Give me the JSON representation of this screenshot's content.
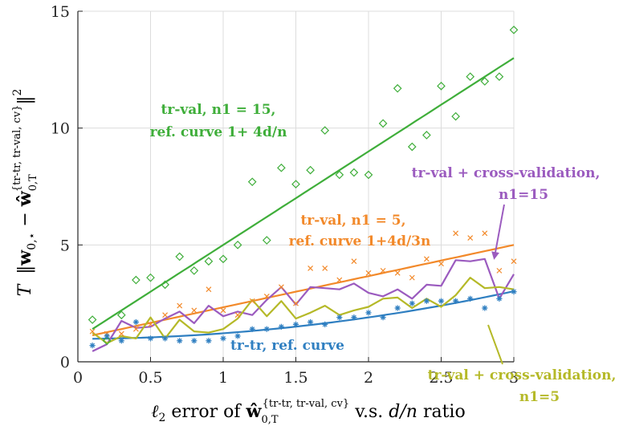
{
  "chart_data": {
    "type": "scatter",
    "xlabel": "ℓ2 error of ŵ0,T{tr-tr, tr-val, cv} v.s. d/n ratio",
    "ylabel": "T ‖w0,⋆ − ŵ0,T{tr-tr, tr-val, cv}‖²",
    "xlim": [
      0,
      3
    ],
    "ylim": [
      0,
      15
    ],
    "xticks": [
      0,
      0.5,
      1,
      1.5,
      2,
      2.5,
      3
    ],
    "xtick_labels": [
      "0",
      "0.5",
      "1",
      "1.5",
      "2",
      "2.5",
      "3"
    ],
    "yticks": [
      0,
      5,
      10,
      15
    ],
    "ytick_labels": [
      "0",
      "5",
      "10",
      "15"
    ],
    "grid": true,
    "series": [
      {
        "key": "trval15",
        "color": "#3fae3a",
        "marker": "diamond",
        "x": [
          0.1,
          0.2,
          0.3,
          0.4,
          0.5,
          0.6,
          0.7,
          0.8,
          0.9,
          1.0,
          1.1,
          1.2,
          1.3,
          1.4,
          1.5,
          1.6,
          1.7,
          1.8,
          1.9,
          2.0,
          2.1,
          2.2,
          2.3,
          2.4,
          2.5,
          2.6,
          2.7,
          2.8,
          2.9,
          3.0
        ],
        "y": [
          1.8,
          0.9,
          2.0,
          3.5,
          3.6,
          3.3,
          4.5,
          3.9,
          4.3,
          4.4,
          5.0,
          7.7,
          5.2,
          8.3,
          7.6,
          8.2,
          9.9,
          8.0,
          8.1,
          8.0,
          10.2,
          11.7,
          9.2,
          9.7,
          11.8,
          10.5,
          12.2,
          12.0,
          12.2,
          14.2
        ]
      },
      {
        "key": "trval5",
        "color": "#f2892a",
        "marker": "x",
        "x": [
          0.1,
          0.2,
          0.3,
          0.4,
          0.5,
          0.6,
          0.7,
          0.8,
          0.9,
          1.0,
          1.1,
          1.2,
          1.3,
          1.4,
          1.5,
          1.6,
          1.7,
          1.8,
          1.9,
          2.0,
          2.1,
          2.2,
          2.3,
          2.4,
          2.5,
          2.6,
          2.7,
          2.8,
          2.9,
          3.0
        ],
        "y": [
          1.3,
          1.2,
          1.2,
          1.4,
          1.6,
          2.0,
          2.4,
          2.2,
          3.1,
          2.2,
          2.0,
          2.6,
          2.8,
          3.2,
          2.5,
          4.0,
          4.0,
          3.5,
          4.3,
          3.8,
          3.9,
          3.8,
          3.6,
          4.4,
          4.2,
          5.5,
          5.3,
          5.5,
          3.9,
          4.3
        ]
      },
      {
        "key": "trtr",
        "color": "#2f7fc1",
        "marker": "asterisk",
        "x": [
          0.1,
          0.2,
          0.3,
          0.4,
          0.5,
          0.6,
          0.7,
          0.8,
          0.9,
          1.0,
          1.1,
          1.2,
          1.3,
          1.4,
          1.5,
          1.6,
          1.7,
          1.8,
          1.9,
          2.0,
          2.1,
          2.2,
          2.3,
          2.4,
          2.5,
          2.6,
          2.7,
          2.8,
          2.9,
          3.0
        ],
        "y": [
          0.7,
          1.1,
          0.9,
          1.7,
          1.0,
          1.0,
          0.9,
          0.9,
          0.9,
          1.0,
          1.1,
          1.4,
          1.4,
          1.5,
          1.6,
          1.7,
          1.6,
          1.9,
          1.9,
          2.1,
          1.9,
          2.3,
          2.5,
          2.6,
          2.6,
          2.6,
          2.7,
          2.3,
          2.7,
          3.0
        ]
      }
    ],
    "line_series": [
      {
        "key": "cv15",
        "color": "#9b5bbf",
        "x": [
          0.1,
          0.2,
          0.3,
          0.4,
          0.5,
          0.6,
          0.7,
          0.8,
          0.9,
          1.0,
          1.1,
          1.2,
          1.3,
          1.4,
          1.5,
          1.6,
          1.7,
          1.8,
          1.9,
          2.0,
          2.1,
          2.2,
          2.3,
          2.4,
          2.5,
          2.6,
          2.7,
          2.8,
          2.9,
          3.0
        ],
        "y": [
          0.45,
          0.75,
          1.75,
          1.45,
          1.5,
          1.85,
          2.15,
          1.65,
          2.4,
          1.95,
          2.15,
          2.0,
          2.65,
          3.2,
          2.45,
          3.2,
          3.15,
          3.1,
          3.35,
          2.95,
          2.8,
          3.1,
          2.7,
          3.3,
          3.25,
          4.35,
          4.3,
          4.4,
          2.7,
          3.75
        ]
      },
      {
        "key": "cv5",
        "color": "#b5b928",
        "x": [
          0.1,
          0.2,
          0.3,
          0.4,
          0.5,
          0.6,
          0.7,
          0.8,
          0.9,
          1.0,
          1.1,
          1.2,
          1.3,
          1.4,
          1.5,
          1.6,
          1.7,
          1.8,
          1.9,
          2.0,
          2.1,
          2.2,
          2.3,
          2.4,
          2.5,
          2.6,
          2.7,
          2.8,
          2.9,
          3.0
        ],
        "y": [
          1.25,
          0.8,
          1.1,
          1.0,
          1.9,
          1.0,
          1.8,
          1.3,
          1.25,
          1.4,
          1.85,
          2.65,
          1.95,
          2.6,
          1.85,
          2.1,
          2.4,
          2.0,
          2.2,
          2.35,
          2.7,
          2.75,
          2.3,
          2.7,
          2.35,
          2.85,
          3.6,
          3.15,
          3.2,
          3.1
        ]
      }
    ],
    "ref_curves": [
      {
        "key": "ref15",
        "color": "#3fae3a",
        "formula": "1+4d/n"
      },
      {
        "key": "ref5",
        "color": "#f2892a",
        "formula": "1+4d/3n"
      },
      {
        "key": "reftr",
        "color": "#2f7fc1",
        "formula": "tr-tr"
      }
    ],
    "annotations": {
      "trval15_line1": "tr-val, n1 = 15,",
      "trval15_line2": "ref. curve 1+ 4d/n",
      "trval5_line1": "tr-val, n1 = 5,",
      "trval5_line2": "ref. curve 1+4d/3n",
      "trtr": "tr-tr, ref. curve",
      "cv15_line1": "tr-val + cross-validation,",
      "cv15_line2": "n1=15",
      "cv5_line1": "tr-val + cross-validation,",
      "cv5_line2": "n1=5"
    }
  }
}
